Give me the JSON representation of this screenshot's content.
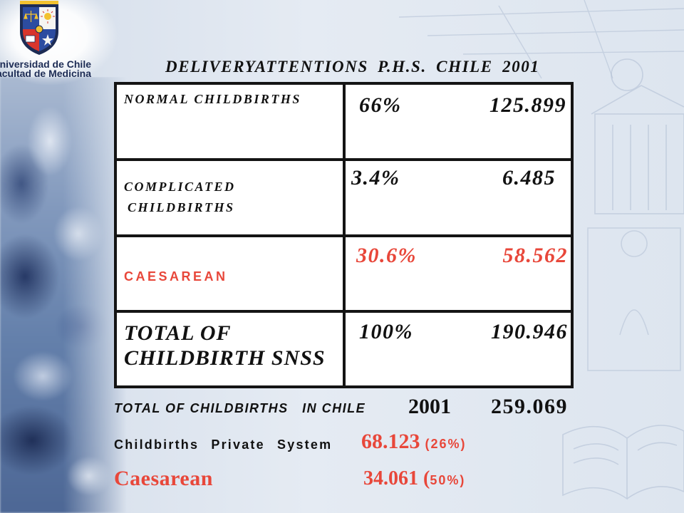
{
  "slide": {
    "title": "DELIVERYATTENTIONS P.H.S. CHILE 2001",
    "logo": {
      "line1": "Universidad de Chile",
      "line2": "Facultad de Medicina",
      "crest_icon": "university-crest-icon"
    }
  },
  "table": {
    "rows": [
      {
        "label": "NORMAL CHILDBIRTHS",
        "percent": "66%",
        "count": "125.899"
      },
      {
        "label_line1": "COMPLICATED",
        "label_line2": "CHILDBIRTHS",
        "percent": "3.4%",
        "count": "6.485"
      },
      {
        "label": "CAESAREAN",
        "percent": "30.6%",
        "count": "58.562"
      },
      {
        "label_line1": "TOTAL OF",
        "label_line2": "CHILDBIRTH SNSS",
        "percent": "100%",
        "count": "190.946"
      }
    ]
  },
  "summary": {
    "total_label": "TOTAL OF CHILDBIRTHS   IN CHILE",
    "total_year": "2001",
    "total_value": "259.069",
    "private_label": "Childbirths Private System",
    "private_value": "68.123",
    "private_percent": "(26%)",
    "caesarean_label": "Caesarean",
    "caesarean_value": "34.061 (",
    "caesarean_percent": "50%)"
  },
  "colors": {
    "text": "#111111",
    "accent_red": "#e8473a",
    "logo_text": "#1d2c55",
    "background": "#dfe6ef",
    "table_border": "#141414"
  }
}
